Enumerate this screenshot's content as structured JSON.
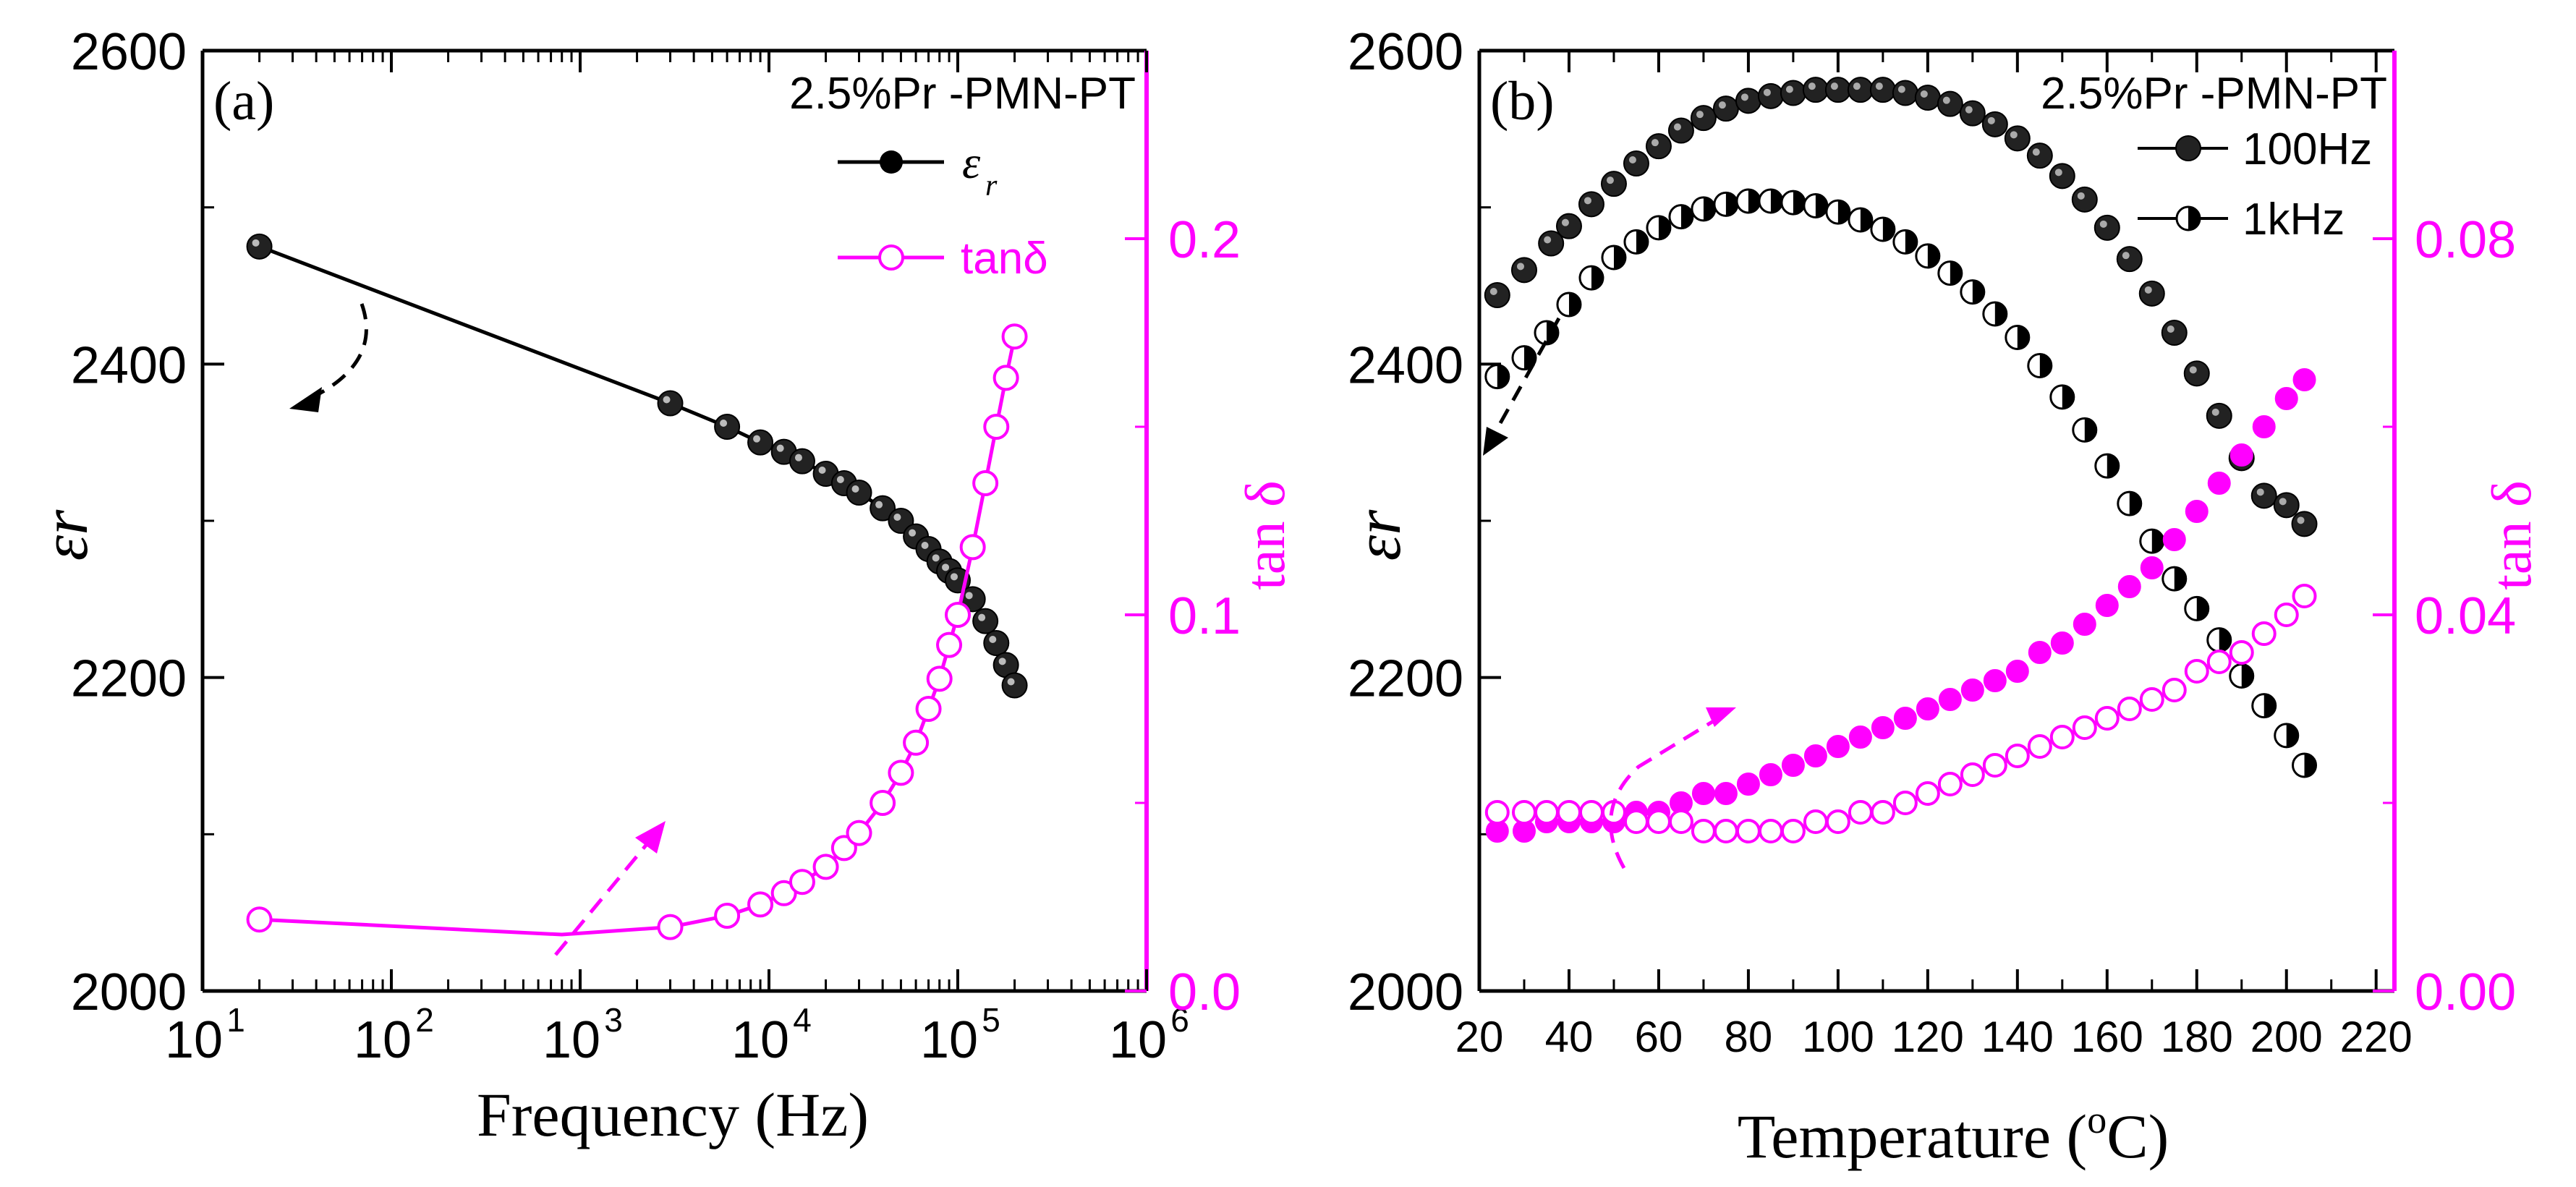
{
  "chart_data": [
    {
      "panel": "a",
      "type": "line",
      "panel_label": "(a)",
      "title": "2.5%Pr -PMN-PT",
      "xlabel": "Frequency (Hz)",
      "xscale": "log",
      "xlim": [
        10,
        1000000
      ],
      "x_ticks": [
        {
          "base": "10",
          "exp": "1",
          "v": 10
        },
        {
          "base": "10",
          "exp": "2",
          "v": 100
        },
        {
          "base": "10",
          "exp": "3",
          "v": 1000
        },
        {
          "base": "10",
          "exp": "4",
          "v": 10000
        },
        {
          "base": "10",
          "exp": "5",
          "v": 100000
        },
        {
          "base": "10",
          "exp": "6",
          "v": 1000000
        }
      ],
      "ylabel_left": "εr",
      "ylim_left": [
        2000,
        2600
      ],
      "y_ticks_left": [
        "2000",
        "2200",
        "2400",
        "2600"
      ],
      "ylabel_right": "tan δ",
      "ylim_right": [
        0.0,
        0.25
      ],
      "y_ticks_right": [
        "0.0",
        "0.1",
        "0.2"
      ],
      "legend": [
        {
          "label": "ε",
          "sub": "r",
          "color": "#000000",
          "marker": "filled-circle"
        },
        {
          "label": "tanδ",
          "color": "#ff00ff",
          "marker": "open-circle"
        }
      ],
      "series": [
        {
          "name": "εr",
          "axis": "left",
          "color": "#000000",
          "marker": "filled-circle",
          "x": [
            20,
            3000,
            6000,
            9000,
            12000,
            15000,
            20000,
            25000,
            30000,
            40000,
            50000,
            60000,
            70000,
            80000,
            90000,
            100000,
            120000,
            140000,
            160000,
            180000,
            200000
          ],
          "y": [
            2475,
            2375,
            2360,
            2350,
            2344,
            2338,
            2330,
            2324,
            2318,
            2308,
            2300,
            2290,
            2282,
            2274,
            2268,
            2262,
            2250,
            2236,
            2222,
            2208,
            2195
          ]
        },
        {
          "name": "tanδ",
          "axis": "right",
          "color": "#ff00ff",
          "marker": "open-circle",
          "x": [
            20,
            800,
            3000,
            6000,
            9000,
            12000,
            15000,
            20000,
            25000,
            30000,
            40000,
            50000,
            60000,
            70000,
            80000,
            90000,
            100000,
            120000,
            140000,
            160000,
            180000,
            200000
          ],
          "y": [
            0.019,
            0.015,
            0.017,
            0.02,
            0.023,
            0.026,
            0.029,
            0.033,
            0.038,
            0.042,
            0.05,
            0.058,
            0.066,
            0.075,
            0.083,
            0.092,
            0.1,
            0.118,
            0.135,
            0.15,
            0.163,
            0.174
          ]
        }
      ]
    },
    {
      "panel": "b",
      "type": "line",
      "panel_label": "(b)",
      "title": "2.5%Pr -PMN-PT",
      "xlabel_text": "Temperature (",
      "xlabel_sup": "o",
      "xlabel_unit": "C)",
      "xlim": [
        20,
        220
      ],
      "x_ticks": [
        "20",
        "40",
        "60",
        "80",
        "100",
        "120",
        "140",
        "160",
        "180",
        "200",
        "220"
      ],
      "ylabel_left": "εr",
      "ylim_left": [
        2000,
        2600
      ],
      "y_ticks_left": [
        "2000",
        "2200",
        "2400",
        "2600"
      ],
      "ylabel_right": "tan δ",
      "ylim_right": [
        0.0,
        0.1
      ],
      "y_ticks_right": [
        "0.00",
        "0.04",
        "0.08"
      ],
      "legend": [
        {
          "label": "100Hz",
          "color": "#000000",
          "marker": "filled-circle"
        },
        {
          "label": "1kHz",
          "color": "#000000",
          "marker": "half-circle"
        }
      ],
      "series": [
        {
          "name": "100Hz εr",
          "axis": "left",
          "color": "#000000",
          "marker": "filled-circle",
          "x": [
            24,
            30,
            36,
            40,
            45,
            50,
            55,
            60,
            65,
            70,
            75,
            80,
            85,
            90,
            95,
            100,
            105,
            110,
            115,
            120,
            125,
            130,
            135,
            140,
            145,
            150,
            155,
            160,
            165,
            170,
            175,
            180,
            185,
            190,
            195,
            200,
            204
          ],
          "y": [
            2444,
            2460,
            2477,
            2488,
            2502,
            2515,
            2528,
            2539,
            2549,
            2557,
            2563,
            2568,
            2571,
            2573,
            2575,
            2575,
            2575,
            2575,
            2573,
            2570,
            2566,
            2560,
            2553,
            2544,
            2533,
            2520,
            2505,
            2487,
            2467,
            2445,
            2420,
            2394,
            2367,
            2340,
            2316,
            2310,
            2298
          ]
        },
        {
          "name": "1kHz εr",
          "axis": "left",
          "color": "#000000",
          "marker": "half-circle",
          "x": [
            24,
            30,
            35,
            40,
            45,
            50,
            55,
            60,
            65,
            70,
            75,
            80,
            85,
            90,
            95,
            100,
            105,
            110,
            115,
            120,
            125,
            130,
            135,
            140,
            145,
            150,
            155,
            160,
            165,
            170,
            175,
            180,
            185,
            190,
            195,
            200,
            204
          ],
          "y": [
            2392,
            2404,
            2420,
            2438,
            2455,
            2468,
            2478,
            2487,
            2494,
            2499,
            2502,
            2504,
            2504,
            2503,
            2501,
            2497,
            2492,
            2486,
            2478,
            2469,
            2458,
            2446,
            2432,
            2417,
            2399,
            2379,
            2358,
            2335,
            2311,
            2287,
            2263,
            2244,
            2224,
            2201,
            2182,
            2163,
            2144
          ]
        },
        {
          "name": "100Hz tanδ",
          "axis": "right",
          "color": "#ff00ff",
          "marker": "filled-circle",
          "x": [
            24,
            30,
            35,
            40,
            45,
            50,
            55,
            60,
            65,
            70,
            75,
            80,
            85,
            90,
            95,
            100,
            105,
            110,
            115,
            120,
            125,
            130,
            135,
            140,
            145,
            150,
            155,
            160,
            165,
            170,
            175,
            180,
            185,
            190,
            195,
            200,
            204
          ],
          "y": [
            0.017,
            0.017,
            0.018,
            0.018,
            0.018,
            0.018,
            0.019,
            0.019,
            0.02,
            0.021,
            0.021,
            0.022,
            0.023,
            0.024,
            0.025,
            0.026,
            0.027,
            0.028,
            0.029,
            0.03,
            0.031,
            0.032,
            0.033,
            0.034,
            0.036,
            0.037,
            0.039,
            0.041,
            0.043,
            0.045,
            0.048,
            0.051,
            0.054,
            0.057,
            0.06,
            0.063,
            0.065
          ]
        },
        {
          "name": "1kHz tanδ",
          "axis": "right",
          "color": "#ff00ff",
          "marker": "open-circle",
          "x": [
            24,
            30,
            35,
            40,
            45,
            50,
            55,
            60,
            65,
            70,
            75,
            80,
            85,
            90,
            95,
            100,
            105,
            110,
            115,
            120,
            125,
            130,
            135,
            140,
            145,
            150,
            155,
            160,
            165,
            170,
            175,
            180,
            185,
            190,
            195,
            200,
            204
          ],
          "y": [
            0.019,
            0.019,
            0.019,
            0.019,
            0.019,
            0.019,
            0.018,
            0.018,
            0.018,
            0.017,
            0.017,
            0.017,
            0.017,
            0.017,
            0.018,
            0.018,
            0.019,
            0.019,
            0.02,
            0.021,
            0.022,
            0.023,
            0.024,
            0.025,
            0.026,
            0.027,
            0.028,
            0.029,
            0.03,
            0.031,
            0.032,
            0.034,
            0.035,
            0.036,
            0.038,
            0.04,
            0.042
          ]
        }
      ]
    }
  ]
}
